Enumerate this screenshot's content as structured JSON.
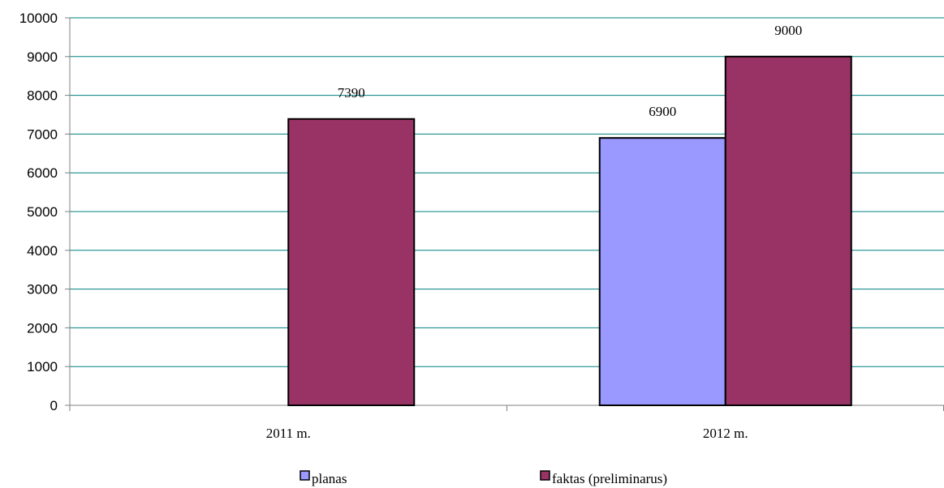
{
  "chart_data": {
    "type": "bar",
    "categories": [
      "2011 m.",
      "2012 m."
    ],
    "series": [
      {
        "name": "planas",
        "values": [
          null,
          6900
        ],
        "color": "#9999ff"
      },
      {
        "name": "faktas (preliminarus)",
        "values": [
          7390,
          9000
        ],
        "color": "#993366"
      }
    ],
    "data_labels": [
      {
        "series": 1,
        "category": 0,
        "text": "7390"
      },
      {
        "series": 0,
        "category": 1,
        "text": "6900"
      },
      {
        "series": 1,
        "category": 1,
        "text": "9000"
      }
    ],
    "ylim": [
      0,
      10000
    ],
    "yticks": [
      "0",
      "1000",
      "2000",
      "3000",
      "4000",
      "5000",
      "6000",
      "7000",
      "8000",
      "9000",
      "10000"
    ],
    "grid": true,
    "grid_color": "#008080",
    "legend_position": "bottom"
  }
}
